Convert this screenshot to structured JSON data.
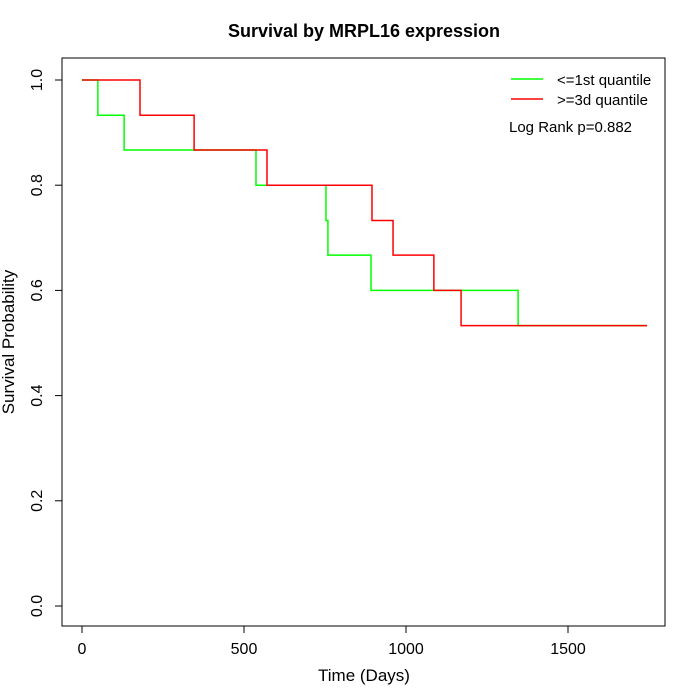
{
  "chart_data": {
    "type": "line",
    "subtype": "kaplan-meier step",
    "title": "Survival by MRPL16 expression",
    "xlabel": "Time (Days)",
    "ylabel": "Survival Probability",
    "xlim": [
      0,
      1750
    ],
    "ylim": [
      0,
      1
    ],
    "xticks": [
      0,
      500,
      1000,
      1500
    ],
    "yticks": [
      0.0,
      0.2,
      0.4,
      0.6,
      0.8,
      1.0
    ],
    "xtick_labels": [
      "0",
      "500",
      "1000",
      "1500"
    ],
    "ytick_labels": [
      "0.0",
      "0.2",
      "0.4",
      "0.6",
      "0.8",
      "1.0"
    ],
    "grid": false,
    "legend_position": "top-right",
    "annotation": "Log Rank p=0.882",
    "series": [
      {
        "name": "<=1st quantile",
        "color": "#00ff00",
        "x": [
          0,
          49,
          130,
          537,
          753,
          759,
          892,
          1346,
          1744
        ],
        "y": [
          1.0,
          0.933,
          0.867,
          0.8,
          0.733,
          0.667,
          0.6,
          0.533,
          0.533
        ]
      },
      {
        "name": ">=3d quantile",
        "color": "#ff0000",
        "x": [
          0,
          179,
          346,
          571,
          895,
          960,
          1086,
          1170,
          1744
        ],
        "y": [
          1.0,
          0.933,
          0.867,
          0.8,
          0.733,
          0.667,
          0.6,
          0.533,
          0.533
        ]
      }
    ]
  }
}
